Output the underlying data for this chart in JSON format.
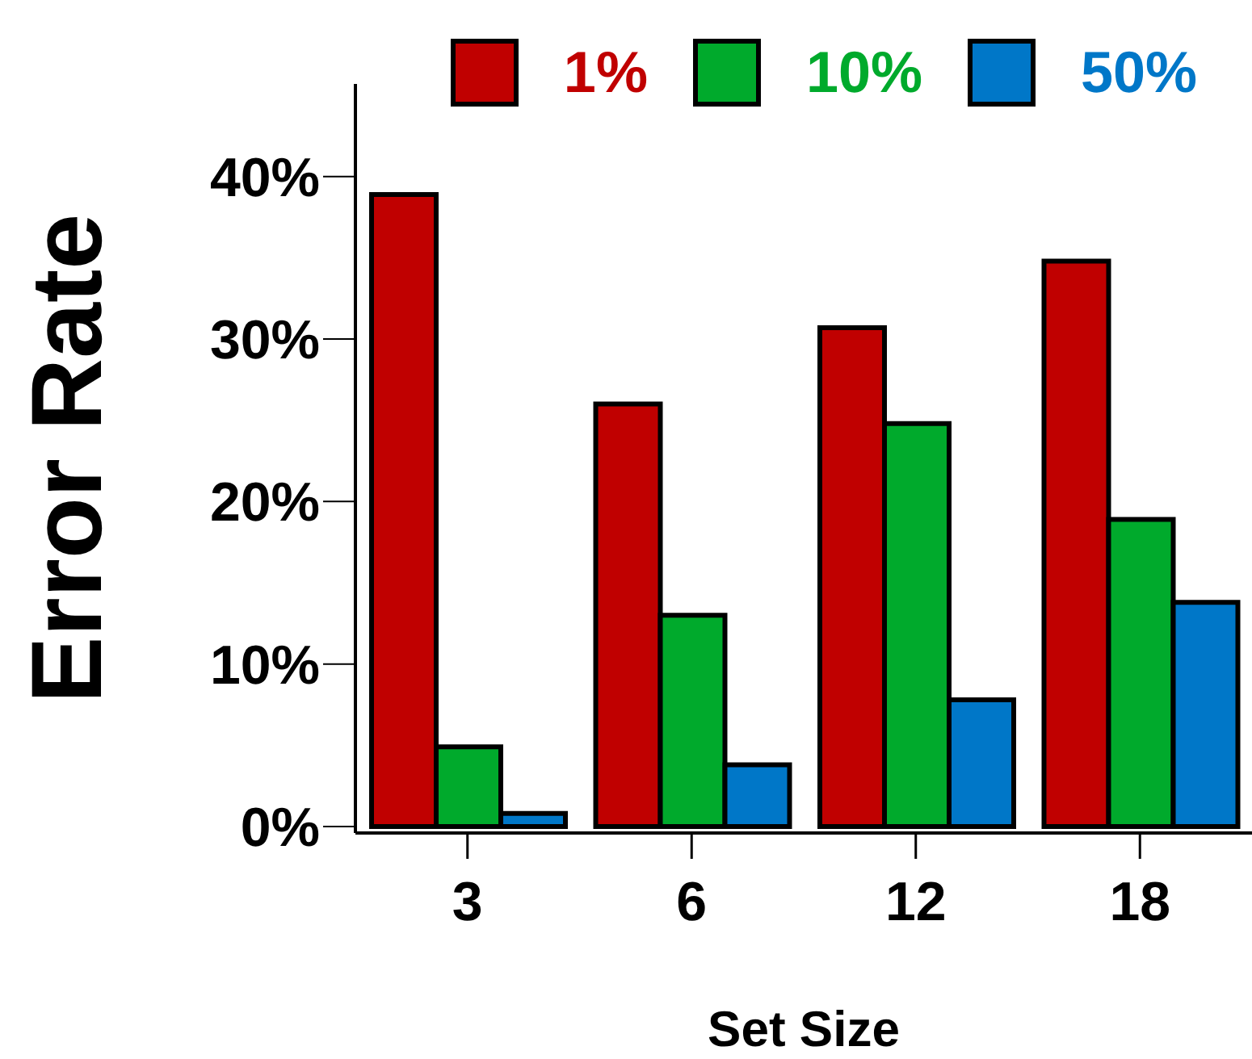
{
  "chart_data": {
    "type": "bar",
    "xlabel": "Set Size",
    "ylabel": "Error Rate",
    "categories": [
      "3",
      "6",
      "12",
      "18"
    ],
    "series": [
      {
        "name": "1%",
        "color": "#c00000",
        "values": [
          38.9,
          26.0,
          30.7,
          34.8
        ]
      },
      {
        "name": "10%",
        "color": "#00aa2c",
        "values": [
          4.9,
          13.0,
          24.8,
          18.9
        ]
      },
      {
        "name": "50%",
        "color": "#0077c8",
        "values": [
          0.8,
          3.8,
          7.8,
          13.8
        ]
      }
    ],
    "ylim": [
      -0.4,
      45.7
    ],
    "yticks": [
      {
        "value": 0,
        "label": "0%"
      },
      {
        "value": 10,
        "label": "10%"
      },
      {
        "value": 20,
        "label": "20%"
      },
      {
        "value": 30,
        "label": "30%"
      },
      {
        "value": 40,
        "label": "40%"
      }
    ],
    "grid": false,
    "legend": "top"
  }
}
